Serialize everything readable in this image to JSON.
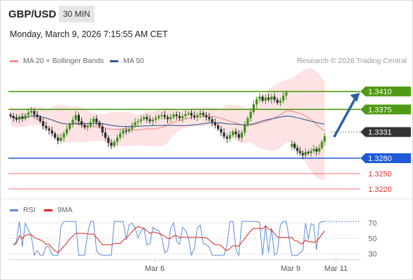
{
  "header": {
    "pair": "GBP/USD",
    "interval": "30 MIN",
    "datetime": "Monday, March 9, 2026 7:15:55 AM CET",
    "credit": "Research © 2026 Trading Central"
  },
  "legend": {
    "main": [
      {
        "label": "MA 20 + Bollinger Bands",
        "color": "#f28b8b"
      },
      {
        "label": "MA 50",
        "color": "#2e5a93"
      }
    ],
    "rsi": [
      {
        "label": "RSI",
        "color": "#5b8bd9"
      },
      {
        "label": "9MA",
        "color": "#e02020"
      }
    ]
  },
  "colors": {
    "up": "#3f8f1a",
    "down": "#2a2a2a",
    "band": "#fde3e3",
    "ma20": "#f08080",
    "ma50": "#1f4e8c",
    "resistance": "#4f9a12",
    "pivot": "#1f5bd6",
    "support": "#f07070",
    "current": "#333333",
    "arrow": "#2d5fa8"
  },
  "chart_data": [
    {
      "type": "candlestick",
      "xlabels": [
        "Mar 6",
        "Mar 9",
        "Mar 11"
      ],
      "ylim": [
        1.3205,
        1.3445
      ],
      "current_price": 1.3331,
      "levels": [
        {
          "value": 1.341,
          "label": "1.3410",
          "kind": "resistance"
        },
        {
          "value": 1.3375,
          "label": "1.3375",
          "kind": "resistance"
        },
        {
          "value": 1.328,
          "label": "1.3280",
          "kind": "pivot"
        },
        {
          "value": 1.325,
          "label": "1.3250",
          "kind": "support"
        },
        {
          "value": 1.322,
          "label": "1.3220",
          "kind": "support"
        }
      ],
      "current_label": "1.3331",
      "forecast": {
        "from": 1.3323,
        "to": 1.341
      }
    },
    {
      "type": "line",
      "name": "RSI",
      "ylim": [
        25,
        75
      ],
      "yticks": [
        70,
        50,
        30
      ],
      "ytick_labels": [
        "70",
        "50",
        "30"
      ]
    }
  ]
}
